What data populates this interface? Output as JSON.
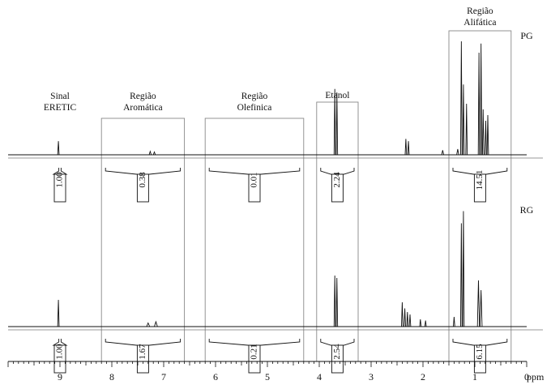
{
  "chart_data": {
    "type": "line",
    "title": "",
    "xlabel": "ppm",
    "x_unit": "ppm",
    "xlim": [
      10,
      0
    ],
    "x_inverted": true,
    "xticks": [
      9,
      8,
      7,
      6,
      5,
      4,
      3,
      2,
      1,
      0
    ],
    "grid": false,
    "regions": [
      {
        "id": "eretic",
        "label": "Sinal ERETIC",
        "label_lines": [
          "Sinal",
          "ERETIC"
        ],
        "range_ppm": [
          9.1,
          8.9
        ],
        "boxed": false
      },
      {
        "id": "aromatica",
        "label": "Região Aromática",
        "label_lines": [
          "Região",
          "Aromática"
        ],
        "range_ppm": [
          8.2,
          6.6
        ],
        "boxed": true
      },
      {
        "id": "olefinica",
        "label": "Região Olefinica",
        "label_lines": [
          "Região",
          "Olefinica"
        ],
        "range_ppm": [
          6.2,
          4.3
        ],
        "boxed": true
      },
      {
        "id": "etanol",
        "label": "Etanol",
        "label_lines": [
          "Etanol"
        ],
        "range_ppm": [
          4.05,
          3.25
        ],
        "boxed": true
      },
      {
        "id": "alifatica",
        "label": "Região Alifática",
        "label_lines": [
          "Região",
          "Alifática"
        ],
        "range_ppm": [
          1.5,
          0.3
        ],
        "boxed": true
      }
    ],
    "series": [
      {
        "name": "PG",
        "integrals": [
          {
            "region": "eretic",
            "value": "1.00"
          },
          {
            "region": "aromatica",
            "value": "0.38"
          },
          {
            "region": "olefinica",
            "value": "0.01"
          },
          {
            "region": "etanol",
            "value": "2.24"
          },
          {
            "region": "alifatica",
            "value": "14.51"
          }
        ],
        "peaks": [
          {
            "ppm": 9.03,
            "height": 0.12,
            "width": 0.012
          },
          {
            "ppm": 7.26,
            "height": 0.03,
            "width": 0.02
          },
          {
            "ppm": 7.18,
            "height": 0.025,
            "width": 0.02
          },
          {
            "ppm": 3.7,
            "height": 0.58,
            "width": 0.012
          },
          {
            "ppm": 3.66,
            "height": 0.55,
            "width": 0.012
          },
          {
            "ppm": 2.33,
            "height": 0.14,
            "width": 0.01
          },
          {
            "ppm": 2.28,
            "height": 0.12,
            "width": 0.01
          },
          {
            "ppm": 1.62,
            "height": 0.04,
            "width": 0.02
          },
          {
            "ppm": 1.33,
            "height": 0.05,
            "width": 0.02
          },
          {
            "ppm": 1.26,
            "height": 1.0,
            "width": 0.012
          },
          {
            "ppm": 1.22,
            "height": 0.62,
            "width": 0.012
          },
          {
            "ppm": 1.16,
            "height": 0.45,
            "width": 0.012
          },
          {
            "ppm": 0.92,
            "height": 0.9,
            "width": 0.01
          },
          {
            "ppm": 0.88,
            "height": 0.98,
            "width": 0.01
          },
          {
            "ppm": 0.84,
            "height": 0.4,
            "width": 0.01
          },
          {
            "ppm": 0.79,
            "height": 0.3,
            "width": 0.01
          },
          {
            "ppm": 0.75,
            "height": 0.35,
            "width": 0.01
          }
        ]
      },
      {
        "name": "RG",
        "integrals": [
          {
            "region": "eretic",
            "value": "1.00"
          },
          {
            "region": "aromatica",
            "value": "1.67"
          },
          {
            "region": "olefinica",
            "value": "0.21"
          },
          {
            "region": "etanol",
            "value": "2.54"
          },
          {
            "region": "alifatica",
            "value": "6.15"
          }
        ],
        "peaks": [
          {
            "ppm": 9.03,
            "height": 0.22,
            "width": 0.012
          },
          {
            "ppm": 7.3,
            "height": 0.03,
            "width": 0.03
          },
          {
            "ppm": 7.15,
            "height": 0.04,
            "width": 0.03
          },
          {
            "ppm": 3.7,
            "height": 0.42,
            "width": 0.012
          },
          {
            "ppm": 3.66,
            "height": 0.4,
            "width": 0.012
          },
          {
            "ppm": 2.4,
            "height": 0.2,
            "width": 0.01
          },
          {
            "ppm": 2.35,
            "height": 0.15,
            "width": 0.01
          },
          {
            "ppm": 2.3,
            "height": 0.12,
            "width": 0.01
          },
          {
            "ppm": 2.25,
            "height": 0.1,
            "width": 0.01
          },
          {
            "ppm": 2.05,
            "height": 0.06,
            "width": 0.01
          },
          {
            "ppm": 1.95,
            "height": 0.05,
            "width": 0.01
          },
          {
            "ppm": 1.4,
            "height": 0.08,
            "width": 0.012
          },
          {
            "ppm": 1.26,
            "height": 0.85,
            "width": 0.012
          },
          {
            "ppm": 1.22,
            "height": 0.95,
            "width": 0.012
          },
          {
            "ppm": 0.93,
            "height": 0.38,
            "width": 0.02
          },
          {
            "ppm": 0.88,
            "height": 0.3,
            "width": 0.02
          }
        ]
      }
    ]
  }
}
